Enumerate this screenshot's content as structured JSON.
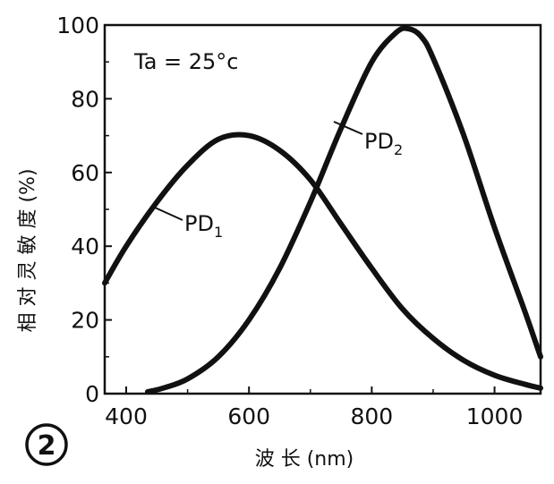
{
  "figure_number": "2",
  "chart_data": {
    "type": "line",
    "xlabel": "波 长 (nm)",
    "ylabel": "相 对 灵 敏 度 (%)",
    "xlim": [
      365,
      1075
    ],
    "ylim": [
      0,
      100
    ],
    "x_ticks": [
      400,
      600,
      800,
      1000
    ],
    "y_ticks": [
      0,
      20,
      40,
      60,
      80,
      100
    ],
    "x_tick_labels": [
      "400",
      "600",
      "800",
      "1000"
    ],
    "y_tick_labels": [
      "0",
      "20",
      "40",
      "60",
      "80",
      "100"
    ],
    "annotation": "Ta = 25°c",
    "grid": false,
    "colors": {
      "line": "#111111",
      "axis": "#111111"
    },
    "series": [
      {
        "name": "PD",
        "subscript": "1",
        "x": [
          365,
          400,
          450,
          500,
          550,
          600,
          650,
          700,
          750,
          800,
          850,
          900,
          950,
          1000,
          1050,
          1075
        ],
        "y": [
          30,
          40,
          52,
          62,
          69,
          70,
          66,
          58,
          46,
          34,
          23,
          15,
          9,
          5,
          2.5,
          1.5
        ]
      },
      {
        "name": "PD",
        "subscript": "2",
        "x": [
          435,
          460,
          500,
          550,
          600,
          650,
          700,
          750,
          800,
          840,
          860,
          880,
          900,
          950,
          1000,
          1050,
          1075
        ],
        "y": [
          0.5,
          1.5,
          4,
          10,
          20,
          34,
          52,
          72,
          90,
          98,
          99,
          97,
          91,
          70,
          45,
          22,
          10
        ]
      }
    ]
  }
}
